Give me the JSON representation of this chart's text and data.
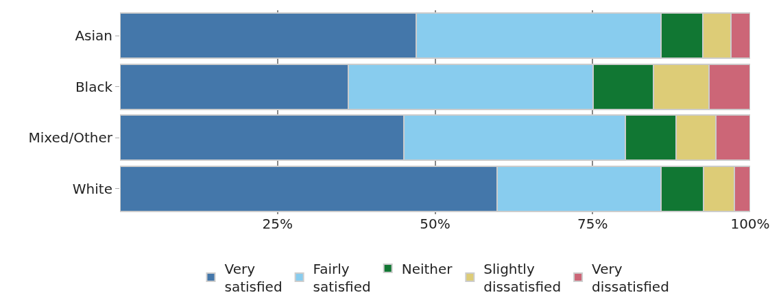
{
  "chart_data": {
    "type": "bar",
    "orientation": "horizontal",
    "stacked": true,
    "categories": [
      "Asian",
      "Black",
      "Mixed/Other",
      "White"
    ],
    "series": [
      {
        "name": "Very satisfied",
        "color": "#4477aa",
        "values": [
          47.0,
          36.2,
          45.0,
          59.8
        ]
      },
      {
        "name": "Fairly satisfied",
        "color": "#88ccee",
        "values": [
          38.8,
          38.9,
          35.2,
          26.0
        ]
      },
      {
        "name": "Neither",
        "color": "#117733",
        "values": [
          6.7,
          9.6,
          8.0,
          6.8
        ]
      },
      {
        "name": "Slightly dissatisfied",
        "color": "#ddcc77",
        "values": [
          4.5,
          8.8,
          6.4,
          4.9
        ]
      },
      {
        "name": "Very dissatisfied",
        "color": "#cc6677",
        "values": [
          3.0,
          6.5,
          5.4,
          2.5
        ]
      }
    ],
    "xlim": [
      0,
      100
    ],
    "xticks": [
      {
        "value": 25,
        "label": "25%"
      },
      {
        "value": 50,
        "label": "50%"
      },
      {
        "value": 75,
        "label": "75%"
      },
      {
        "value": 100,
        "label": "100%"
      }
    ],
    "grid": "x",
    "legend": "bottom"
  }
}
